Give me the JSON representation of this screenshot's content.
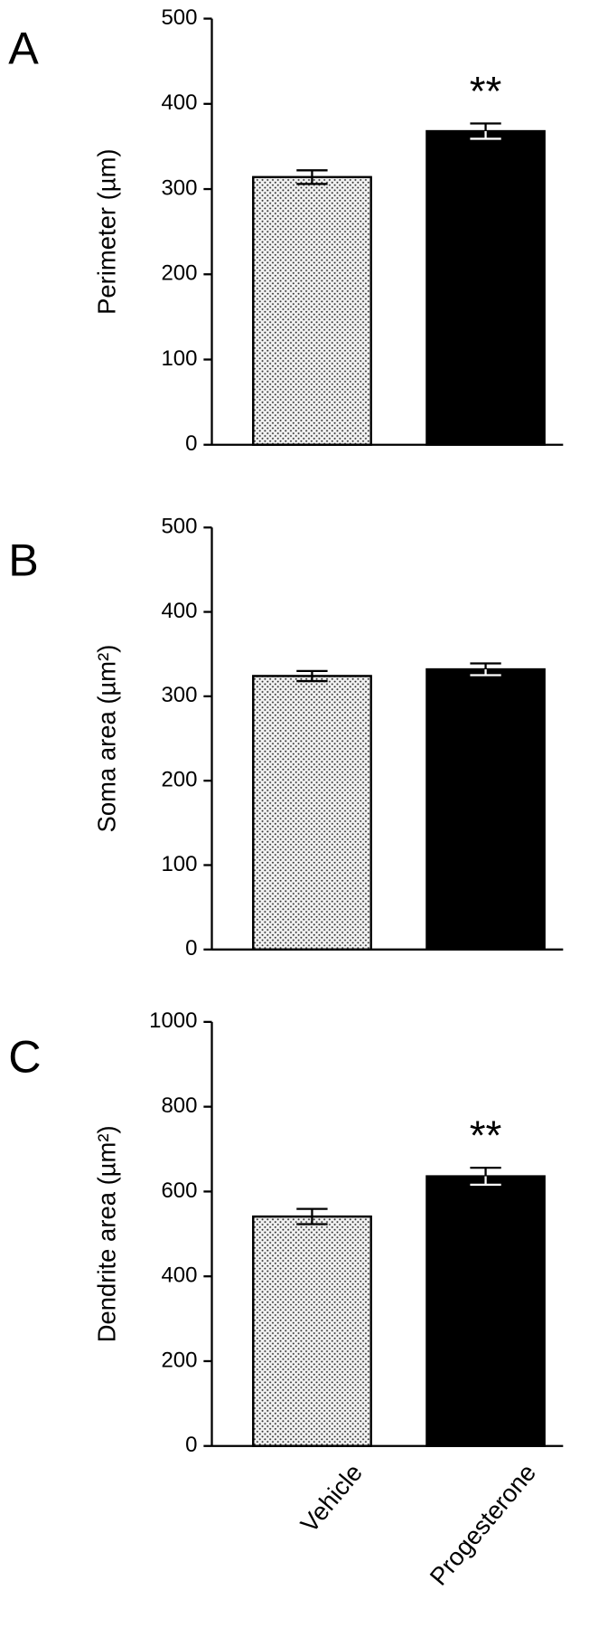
{
  "chart_data": [
    {
      "type": "bar",
      "panel": "A",
      "ylabel": "Perimeter (µm)",
      "categories": [
        null,
        null
      ],
      "values": [
        314,
        368
      ],
      "errors": [
        8,
        9
      ],
      "annotations": [
        null,
        "**"
      ],
      "colors": [
        "#f2f2f2",
        "#000000"
      ],
      "hatch": [
        "dots",
        null
      ],
      "ylim": [
        0,
        500
      ],
      "yticks": [
        0,
        100,
        200,
        300,
        400,
        500
      ]
    },
    {
      "type": "bar",
      "panel": "B",
      "ylabel": "Soma area (µm²)",
      "categories": [
        null,
        null
      ],
      "values": [
        324,
        332
      ],
      "errors": [
        6,
        7
      ],
      "annotations": [
        null,
        null
      ],
      "colors": [
        "#f2f2f2",
        "#000000"
      ],
      "hatch": [
        "dots",
        null
      ],
      "ylim": [
        0,
        500
      ],
      "yticks": [
        0,
        100,
        200,
        300,
        400,
        500
      ]
    },
    {
      "type": "bar",
      "panel": "C",
      "ylabel": "Dendrite area (µm²)",
      "categories": [
        "Vehicle",
        "Progesterone"
      ],
      "values": [
        541,
        636
      ],
      "errors": [
        18,
        20
      ],
      "annotations": [
        null,
        "**"
      ],
      "colors": [
        "#f2f2f2",
        "#000000"
      ],
      "hatch": [
        "dots",
        null
      ],
      "ylim": [
        0,
        1000
      ],
      "yticks": [
        0,
        200,
        400,
        600,
        800,
        1000
      ]
    }
  ]
}
